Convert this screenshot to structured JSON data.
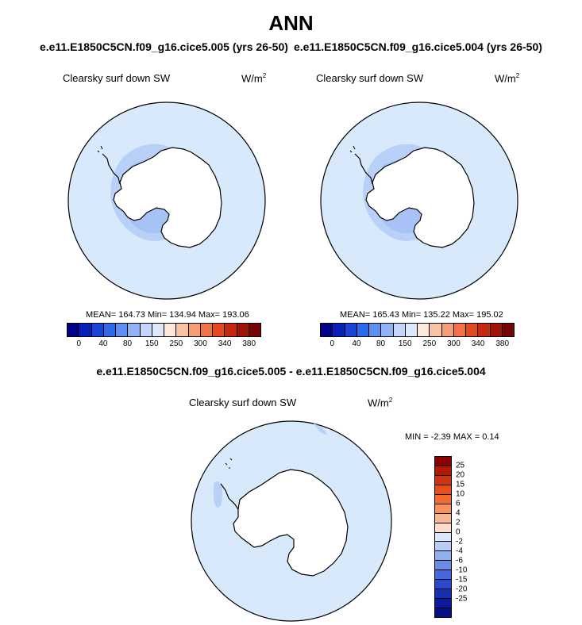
{
  "title": "ANN",
  "case_a": "e.e11.E1850C5CN.f09_g16.cice5.005 (yrs 26-50)",
  "case_b": "e.e11.E1850C5CN.f09_g16.cice5.004 (yrs 26-50)",
  "diff_title": "e.e11.E1850C5CN.f09_g16.cice5.005 - e.e11.E1850C5CN.f09_g16.cice5.004",
  "panels": {
    "left": {
      "label": "Clearsky surf down SW",
      "units": "W/m",
      "units_sup": "2",
      "stats": "MEAN= 164.73   Min= 134.94   Max= 193.06"
    },
    "right": {
      "label": "Clearsky surf down SW",
      "units": "W/m",
      "units_sup": "2",
      "stats": "MEAN= 165.43   Min= 135.22   Max= 195.02"
    },
    "diff": {
      "label": "Clearsky surf down SW",
      "units": "W/m",
      "units_sup": "2",
      "stats": "MIN =  -2.39 MAX =   0.14"
    }
  },
  "abs_colorbar": {
    "colors": [
      "#00008b",
      "#0a1fb5",
      "#1b43d8",
      "#2f6ae8",
      "#5c8ff0",
      "#8fb2f5",
      "#c3d6fb",
      "#dde9fb",
      "#fde8dc",
      "#f9c4a6",
      "#f59c78",
      "#ef7248",
      "#e24a22",
      "#c5280f",
      "#9f1409",
      "#750505"
    ],
    "ticks": [
      "0",
      "40",
      "80",
      "150",
      "250",
      "300",
      "340",
      "380"
    ]
  },
  "diff_colorbar": {
    "colors": [
      "#8b0000",
      "#b21a05",
      "#cf3411",
      "#e84e17",
      "#f26b2c",
      "#f79160",
      "#f8b792",
      "#fcdccb",
      "#dbe8fc",
      "#b6cdf6",
      "#8fb0ef",
      "#6a8ce6",
      "#4768dc",
      "#2a48cc",
      "#1530b5",
      "#0b1b9d",
      "#060f86"
    ],
    "ticks": [
      "25",
      "20",
      "15",
      "10",
      "6",
      "4",
      "2",
      "0",
      "-2",
      "-4",
      "-6",
      "-10",
      "-15",
      "-20",
      "-25"
    ]
  },
  "map_colors": {
    "ocean": "#d7e9fb",
    "mid": "#b9d1f8",
    "low": "#a7c3f5",
    "land_outline": "#000000"
  }
}
